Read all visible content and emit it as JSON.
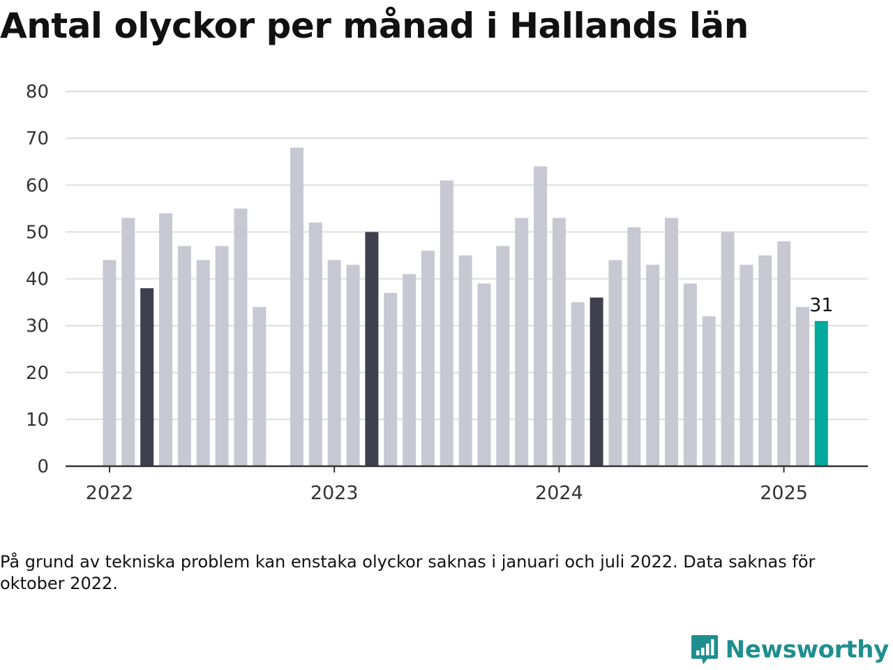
{
  "title": "Antal olyckor per månad i Hallands län",
  "note": "På grund av tekniska problem kan enstaka olyckor saknas i januari och juli 2022. Data saknas för oktober 2022.",
  "brand": {
    "name": "Newsworthy",
    "icon": "newsworthy-logo-icon"
  },
  "chart_data": {
    "type": "bar",
    "title": "Antal olyckor per månad i Hallands län",
    "xlabel": "",
    "ylabel": "",
    "ylim": [
      0,
      80
    ],
    "y_ticks": [
      0,
      10,
      20,
      30,
      40,
      50,
      60,
      70,
      80
    ],
    "x_ticks": [
      "2022",
      "2023",
      "2024",
      "2025"
    ],
    "grid": true,
    "categories": [
      "2022-01",
      "2022-02",
      "2022-03",
      "2022-04",
      "2022-05",
      "2022-06",
      "2022-07",
      "2022-08",
      "2022-09",
      "2022-10",
      "2022-11",
      "2022-12",
      "2023-01",
      "2023-02",
      "2023-03",
      "2023-04",
      "2023-05",
      "2023-06",
      "2023-07",
      "2023-08",
      "2023-09",
      "2023-10",
      "2023-11",
      "2023-12",
      "2024-01",
      "2024-02",
      "2024-03",
      "2024-04",
      "2024-05",
      "2024-06",
      "2024-07",
      "2024-08",
      "2024-09",
      "2024-10",
      "2024-11",
      "2024-12",
      "2025-01",
      "2025-02",
      "2025-03"
    ],
    "values": [
      44,
      53,
      38,
      54,
      47,
      44,
      47,
      55,
      34,
      null,
      68,
      52,
      44,
      43,
      50,
      37,
      41,
      46,
      61,
      45,
      39,
      47,
      53,
      64,
      53,
      35,
      36,
      44,
      51,
      43,
      53,
      39,
      32,
      50,
      43,
      45,
      48,
      34,
      31
    ],
    "highlighted_months": [
      "2022-03",
      "2023-03",
      "2024-03"
    ],
    "latest": {
      "month": "2025-03",
      "value": 31,
      "label": "31"
    },
    "colors": {
      "default": "#c8c8d2",
      "highlight": "#3f3f4e",
      "latest": "#00a99d",
      "grid": "#dddddd",
      "axis": "#333333"
    }
  }
}
